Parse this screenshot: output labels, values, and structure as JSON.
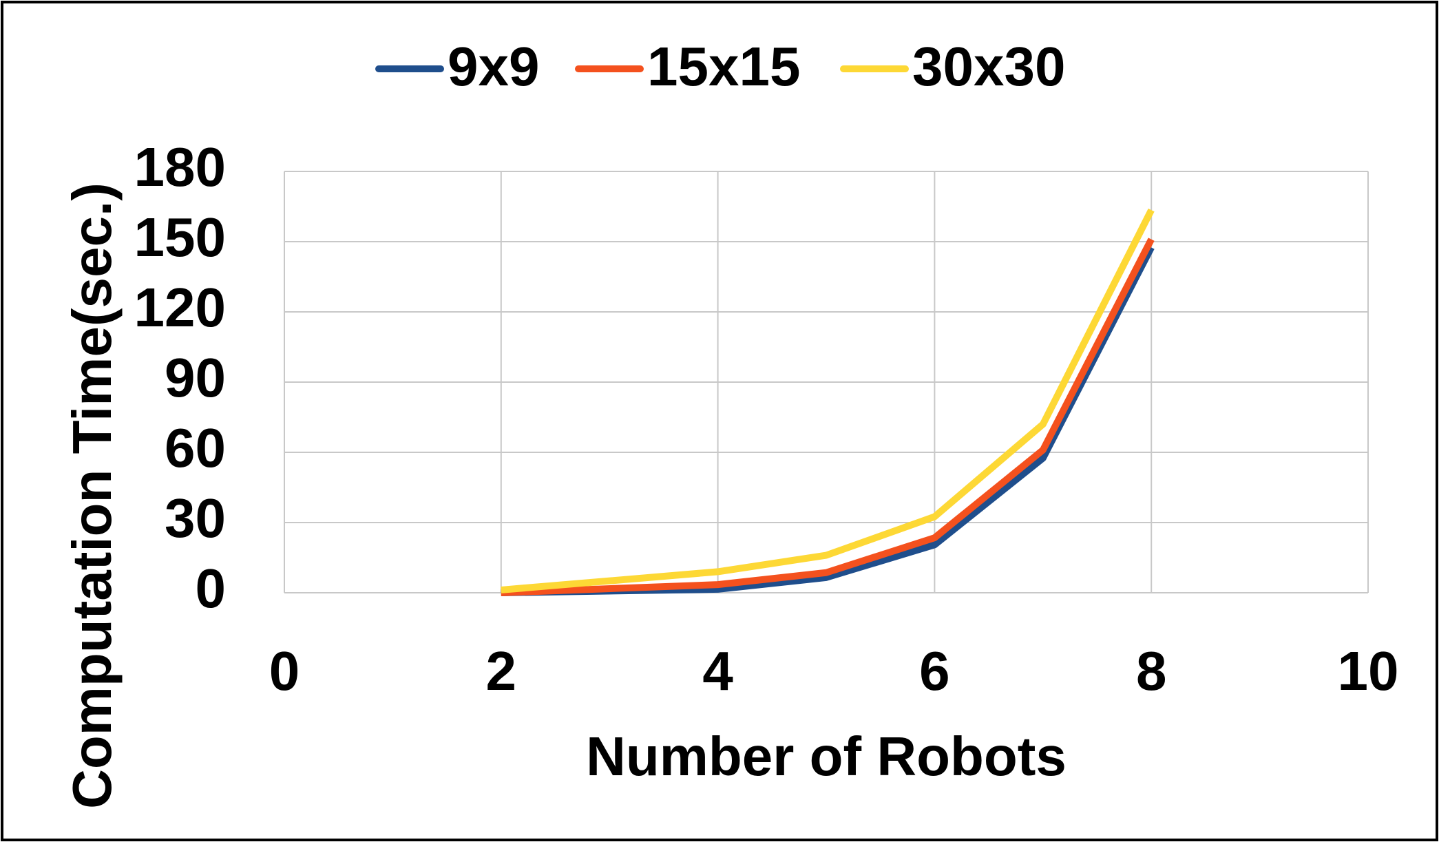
{
  "chart_data": {
    "type": "line",
    "x": [
      2,
      4,
      5,
      6,
      7,
      8
    ],
    "series": [
      {
        "name": "9x9",
        "color": "#1f4e8c",
        "values": [
          0,
          1.5,
          6.5,
          20.5,
          57.5,
          147.5
        ]
      },
      {
        "name": "15x15",
        "color": "#f4511e",
        "values": [
          0,
          3.5,
          8.6,
          23.5,
          61,
          151
        ]
      },
      {
        "name": "30x30",
        "color": "#fdd835",
        "values": [
          1.2,
          9,
          16,
          32.5,
          72,
          163.5
        ]
      }
    ],
    "x_label": "Number of Robots",
    "y_label": "Computation Time(sec.)",
    "xlim": [
      0,
      10
    ],
    "xticks": [
      0,
      2,
      4,
      6,
      8,
      10
    ],
    "ylim": [
      0,
      180
    ],
    "yticks": [
      0,
      30,
      60,
      90,
      120,
      150,
      180
    ],
    "grid": true,
    "legend": "top"
  }
}
